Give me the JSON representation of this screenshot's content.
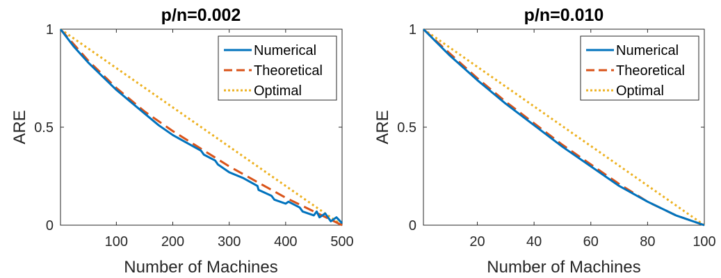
{
  "chart_data": [
    {
      "type": "line",
      "title": "p/n=0.002",
      "xlabel": "Number of Machines",
      "ylabel": "ARE",
      "xlim": [
        1,
        500
      ],
      "ylim": [
        0,
        1
      ],
      "xticks": [
        100,
        200,
        300,
        400,
        500
      ],
      "xtick_labels": [
        "100",
        "200",
        "300",
        "400",
        "500"
      ],
      "yticks": [
        0,
        0.5,
        1
      ],
      "ytick_labels": [
        "0",
        "0.5",
        "1"
      ],
      "grid": false,
      "legend_position": "top-right",
      "series": [
        {
          "name": "Numerical",
          "color": "#0072BD",
          "style": "solid",
          "x": [
            1,
            25,
            50,
            75,
            100,
            125,
            150,
            175,
            200,
            225,
            250,
            255,
            275,
            280,
            300,
            325,
            350,
            352,
            375,
            380,
            400,
            405,
            425,
            430,
            450,
            455,
            460,
            470,
            480,
            490,
            500
          ],
          "y": [
            1.0,
            0.91,
            0.83,
            0.76,
            0.69,
            0.63,
            0.57,
            0.51,
            0.46,
            0.42,
            0.38,
            0.36,
            0.33,
            0.31,
            0.27,
            0.24,
            0.2,
            0.18,
            0.15,
            0.13,
            0.11,
            0.12,
            0.09,
            0.07,
            0.05,
            0.07,
            0.04,
            0.06,
            0.02,
            0.04,
            0.01
          ]
        },
        {
          "name": "Theoretical",
          "color": "#D95319",
          "style": "dashed",
          "x": [
            1,
            50,
            100,
            150,
            200,
            250,
            300,
            350,
            400,
            450,
            500
          ],
          "y": [
            1.0,
            0.84,
            0.7,
            0.58,
            0.48,
            0.39,
            0.3,
            0.22,
            0.14,
            0.07,
            0.0
          ]
        },
        {
          "name": "Optimal",
          "color": "#EDB120",
          "style": "dotted",
          "x": [
            1,
            500
          ],
          "y": [
            1.0,
            0.0
          ]
        }
      ]
    },
    {
      "type": "line",
      "title": "p/n=0.010",
      "xlabel": "Number of Machines",
      "ylabel": "ARE",
      "xlim": [
        1,
        100
      ],
      "ylim": [
        0,
        1
      ],
      "xticks": [
        20,
        40,
        60,
        80,
        100
      ],
      "xtick_labels": [
        "20",
        "40",
        "60",
        "80",
        "100"
      ],
      "yticks": [
        0,
        0.5,
        1
      ],
      "ytick_labels": [
        "0",
        "0.5",
        "1"
      ],
      "grid": false,
      "legend_position": "top-right",
      "series": [
        {
          "name": "Numerical",
          "color": "#0072BD",
          "style": "solid",
          "x": [
            1,
            10,
            20,
            30,
            40,
            50,
            60,
            70,
            80,
            90,
            100
          ],
          "y": [
            1.0,
            0.87,
            0.74,
            0.62,
            0.51,
            0.4,
            0.3,
            0.2,
            0.12,
            0.05,
            0.0
          ]
        },
        {
          "name": "Theoretical",
          "color": "#D95319",
          "style": "dashed",
          "x": [
            1,
            10,
            20,
            30,
            40,
            50,
            60,
            70,
            80,
            90,
            100
          ],
          "y": [
            1.0,
            0.88,
            0.75,
            0.63,
            0.52,
            0.41,
            0.31,
            0.21,
            0.12,
            0.05,
            0.0
          ]
        },
        {
          "name": "Optimal",
          "color": "#EDB120",
          "style": "dotted",
          "x": [
            1,
            100
          ],
          "y": [
            1.0,
            0.0
          ]
        }
      ]
    }
  ]
}
